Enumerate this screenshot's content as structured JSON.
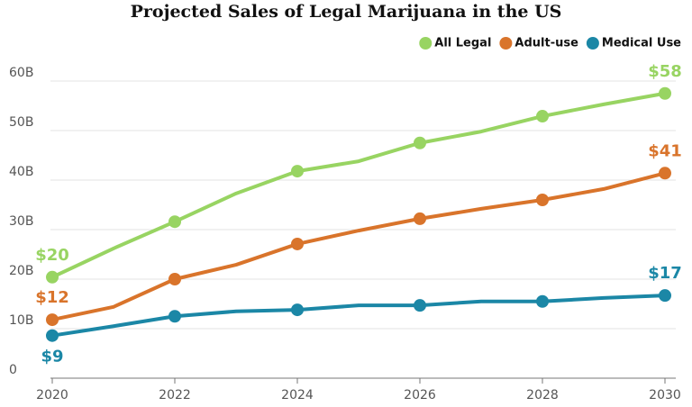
{
  "chart_data": {
    "type": "line",
    "title": "Projected Sales of Legal Marijuana in the US",
    "x": [
      2020,
      2021,
      2022,
      2023,
      2024,
      2025,
      2026,
      2027,
      2028,
      2029,
      2030
    ],
    "xlim": [
      2020,
      2030
    ],
    "xticks": [
      2020,
      2022,
      2024,
      2026,
      2028,
      2030
    ],
    "ylim": [
      0,
      60
    ],
    "yticks": [
      0,
      {
        "value": 10,
        "label": "10B"
      },
      {
        "value": 20,
        "label": "20B"
      },
      {
        "value": 30,
        "label": "30B"
      },
      {
        "value": 40,
        "label": "40B"
      },
      {
        "value": 50,
        "label": "50B"
      },
      {
        "value": 60,
        "label": "60B"
      }
    ],
    "grid": true,
    "legend": "top-right",
    "series": [
      {
        "name": "All Legal",
        "color": "#98d462",
        "values": [
          20.4,
          26.2,
          31.6,
          37.3,
          41.8,
          43.8,
          47.5,
          49.8,
          52.9,
          55.3,
          57.5
        ],
        "value_labels": [
          "$20",
          null,
          null,
          null,
          null,
          null,
          null,
          null,
          null,
          null,
          "$58"
        ]
      },
      {
        "name": "Adult-use",
        "color": "#d9742b",
        "values": [
          11.8,
          14.4,
          20.0,
          22.9,
          27.1,
          29.8,
          32.2,
          34.2,
          36.0,
          38.2,
          41.4
        ],
        "value_labels": [
          "$12",
          null,
          null,
          null,
          null,
          null,
          null,
          null,
          null,
          null,
          "$41"
        ]
      },
      {
        "name": "Medical Use",
        "color": "#1b87a6",
        "values": [
          8.6,
          10.5,
          12.5,
          13.5,
          13.8,
          14.7,
          14.7,
          15.5,
          15.5,
          16.2,
          16.7
        ],
        "value_labels": [
          "$9",
          null,
          null,
          null,
          null,
          null,
          null,
          null,
          null,
          null,
          "$17"
        ]
      }
    ]
  }
}
